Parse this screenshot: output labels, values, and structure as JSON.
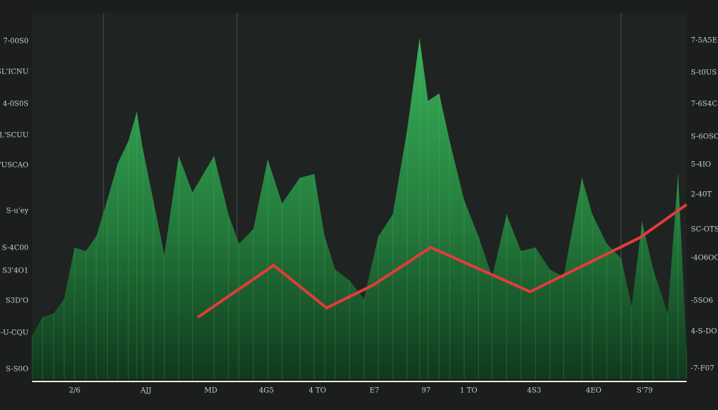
{
  "chart_data": {
    "type": "area",
    "xlim": [
      0,
      100
    ],
    "ylim": [
      0,
      100
    ],
    "y2lim": [
      0,
      100
    ],
    "xticks": [
      {
        "value": 6.5,
        "label": "2/6"
      },
      {
        "value": 17.4,
        "label": "AJJ"
      },
      {
        "value": 27.3,
        "label": "MD"
      },
      {
        "value": 35.8,
        "label": "4G5"
      },
      {
        "value": 43.6,
        "label": "4 TO"
      },
      {
        "value": 52.3,
        "label": "E7"
      },
      {
        "value": 60.2,
        "label": "97"
      },
      {
        "value": 66.7,
        "label": "1 TO"
      },
      {
        "value": 76.7,
        "label": "4S3"
      },
      {
        "value": 85.8,
        "label": "4EO"
      },
      {
        "value": 93.6,
        "label": "S'79"
      }
    ],
    "yticks": [
      {
        "value": 92.2,
        "label": "7-00S0"
      },
      {
        "value": 83.9,
        "label": "SL'ICNU"
      },
      {
        "value": 75.1,
        "label": "4-0S0S"
      },
      {
        "value": 66.5,
        "label": "SL'SCUU"
      },
      {
        "value": 58.4,
        "label": "S'USCAO"
      },
      {
        "value": 45.9,
        "label": "S-u'ey"
      },
      {
        "value": 35.8,
        "label": "S-4C00"
      },
      {
        "value": 29.6,
        "label": "S3'4O1"
      },
      {
        "value": 21.4,
        "label": "S3D'O"
      },
      {
        "value": 12.6,
        "label": "S-U-CQU"
      },
      {
        "value": 2.7,
        "label": "S-S0O"
      }
    ],
    "y2ticks": [
      {
        "value": 92.4,
        "label": "7-5A5E"
      },
      {
        "value": 83.7,
        "label": "S-t0US"
      },
      {
        "value": 75.1,
        "label": "7-6S4C"
      },
      {
        "value": 66.1,
        "label": "S-6OSO"
      },
      {
        "value": 58.6,
        "label": "5-4IO"
      },
      {
        "value": 50.4,
        "label": "2-40T"
      },
      {
        "value": 40.9,
        "label": "SC-OTS"
      },
      {
        "value": 33.1,
        "label": "-4O6OO"
      },
      {
        "value": 21.4,
        "label": "-5SO6"
      },
      {
        "value": 13.0,
        "label": "4-S-DO"
      },
      {
        "value": 2.9,
        "label": "-7-F07"
      }
    ],
    "series": [
      {
        "style": "area",
        "color": "#2e9e4a",
        "x": [
          0,
          1.6,
          3.3,
          4.9,
          6.5,
          8.2,
          9.8,
          11.5,
          13.1,
          14.7,
          16.0,
          16.9,
          18.5,
          20.2,
          22.4,
          24.5,
          27.8,
          30.0,
          31.6,
          33.8,
          36.0,
          38.2,
          40.9,
          43.1,
          44.7,
          46.3,
          48.5,
          50.7,
          52.9,
          55.1,
          57.3,
          59.2,
          60.5,
          62.2,
          63.8,
          66.0,
          68.2,
          70.3,
          72.5,
          74.7,
          76.9,
          79.1,
          81.2,
          84.0,
          85.6,
          87.8,
          90.0,
          91.6,
          93.2,
          94.9,
          97.1,
          98.7,
          100
        ],
        "values": [
          12,
          17,
          18,
          22,
          36,
          35,
          39,
          49,
          59,
          65,
          73,
          63,
          49,
          34,
          61,
          51,
          61,
          45,
          37,
          41,
          60,
          48,
          55,
          56,
          39,
          30,
          27,
          22,
          39,
          45,
          68,
          93,
          76,
          78,
          65,
          49,
          39,
          28,
          45,
          35,
          36,
          30,
          28,
          55,
          45,
          37,
          33,
          20,
          43,
          30,
          18,
          56,
          8
        ]
      },
      {
        "style": "line",
        "color": "#e03c3c",
        "x": [
          25.3,
          36.9,
          45.0,
          52.1,
          60.9,
          76.1,
          92.9,
          100
        ],
        "values": [
          16.9,
          31.1,
          19.5,
          25.7,
          36.0,
          23.9,
          38.7,
          47.7
        ]
      }
    ]
  }
}
